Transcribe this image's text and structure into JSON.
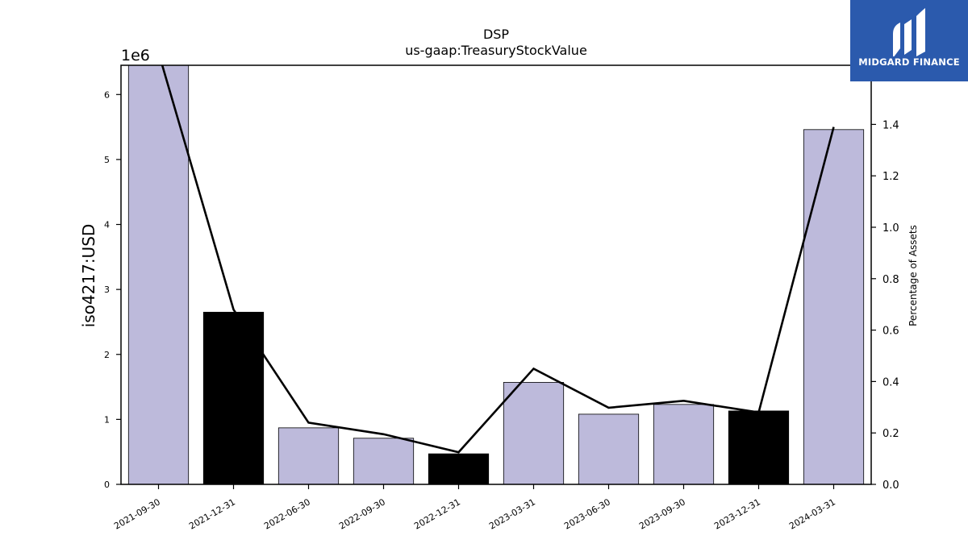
{
  "chart_data": {
    "type": "bar",
    "title": "DSP",
    "subtitle": "us-gaap:TreasuryStockValue",
    "ylabel": "iso4217:USD",
    "ylabel_right": "Percentage of Assets",
    "y_offset_label": "1e6",
    "categories": [
      "2021-09-30",
      "2021-12-31",
      "2022-06-30",
      "2022-09-30",
      "2022-12-31",
      "2023-03-31",
      "2023-06-30",
      "2023-09-30",
      "2023-12-31",
      "2024-03-31"
    ],
    "values": [
      6450000,
      2650000,
      870000,
      710000,
      470000,
      1570000,
      1080000,
      1230000,
      1130000,
      5460000
    ],
    "bar_colors": [
      "#bdbadb",
      "#000000",
      "#bdbadb",
      "#bdbadb",
      "#000000",
      "#bdbadb",
      "#bdbadb",
      "#bdbadb",
      "#000000",
      "#bdbadb"
    ],
    "line_values": [
      1.68,
      0.68,
      0.24,
      0.195,
      0.125,
      0.45,
      0.298,
      0.325,
      0.28,
      1.39
    ],
    "ylim": [
      0,
      6450000
    ],
    "ylim_right": [
      0,
      1.63
    ],
    "y_ticks": [
      0,
      1000000,
      2000000,
      3000000,
      4000000,
      5000000,
      6000000
    ],
    "y_tick_labels": [
      "0",
      "1",
      "2",
      "3",
      "4",
      "5",
      "6"
    ],
    "y_right_ticks": [
      0.0,
      0.2,
      0.4,
      0.6,
      0.8,
      1.0,
      1.2,
      1.4
    ],
    "y_right_tick_labels": [
      "0.0",
      "0.2",
      "0.4",
      "0.6",
      "0.8",
      "1.0",
      "1.2",
      "1.4"
    ],
    "grid": false
  },
  "logo": {
    "text": "MIDGARD FINANCE"
  }
}
